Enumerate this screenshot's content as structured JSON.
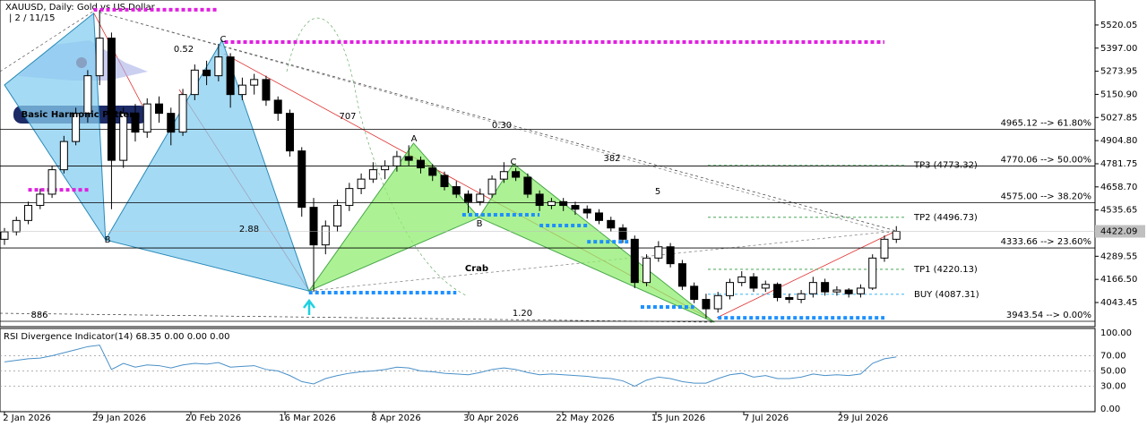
{
  "chart_data": {
    "type": "candlestick",
    "title": "XAUUSD, Daily:  Gold vs US Dollar",
    "subtitle": "| 2 / 11/15",
    "last_price": 4422.09,
    "ylim": [
      3915,
      5653
    ],
    "yticks": [
      5520.05,
      {
        "value": 5397,
        "label": "5397.00"
      },
      5273.95,
      {
        "value": 5150.9,
        "label": "5150.90"
      },
      5027.85,
      {
        "value": 4904.8,
        "label": "4904.80"
      },
      4781.75,
      {
        "value": 4658.7,
        "label": "4658.70"
      },
      4535.65,
      4289.55,
      {
        "value": 4166.5,
        "label": "4166.50"
      },
      4043.45
    ],
    "x_labels": [
      "2 Jan 2026",
      "29 Jan 2026",
      "20 Feb 2026",
      "16 Mar 2026",
      "8 Apr 2026",
      "30 Apr 2026",
      "22 May 2026",
      "15 Jun 2026",
      "7 Jul 2026",
      "29 Jul 2026"
    ],
    "candles": [
      [
        4380,
        4440,
        4350,
        4420
      ],
      [
        4420,
        4500,
        4400,
        4480
      ],
      [
        4480,
        4580,
        4460,
        4560
      ],
      [
        4560,
        4650,
        4540,
        4620
      ],
      [
        4620,
        4770,
        4600,
        4750
      ],
      [
        4750,
        4930,
        4730,
        4900
      ],
      [
        4900,
        5080,
        4880,
        5050
      ],
      [
        5050,
        5280,
        5000,
        5250
      ],
      [
        5250,
        5600,
        5200,
        5450
      ],
      [
        5450,
        5480,
        4540,
        4800
      ],
      [
        4800,
        5080,
        4760,
        5050
      ],
      [
        5050,
        5100,
        4900,
        4950
      ],
      [
        4950,
        5130,
        4920,
        5100
      ],
      [
        5100,
        5140,
        5000,
        5050
      ],
      [
        5050,
        5080,
        4880,
        4950
      ],
      [
        4950,
        5180,
        4930,
        5150
      ],
      [
        5150,
        5310,
        5120,
        5280
      ],
      [
        5280,
        5330,
        5200,
        5250
      ],
      [
        5250,
        5420,
        5220,
        5350
      ],
      [
        5350,
        5370,
        5080,
        5150
      ],
      [
        5150,
        5240,
        5120,
        5200
      ],
      [
        5200,
        5260,
        5150,
        5230
      ],
      [
        5230,
        5250,
        5090,
        5120
      ],
      [
        5120,
        5140,
        5010,
        5050
      ],
      [
        5050,
        5070,
        4820,
        4850
      ],
      [
        4850,
        4870,
        4500,
        4550
      ],
      [
        4550,
        4600,
        4100,
        4350
      ],
      [
        4350,
        4480,
        4300,
        4450
      ],
      [
        4450,
        4590,
        4420,
        4560
      ],
      [
        4560,
        4680,
        4530,
        4650
      ],
      [
        4650,
        4730,
        4620,
        4700
      ],
      [
        4700,
        4790,
        4680,
        4750
      ],
      [
        4750,
        4800,
        4700,
        4770
      ],
      [
        4770,
        4850,
        4740,
        4820
      ],
      [
        4820,
        4880,
        4770,
        4800
      ],
      [
        4800,
        4820,
        4730,
        4760
      ],
      [
        4760,
        4780,
        4690,
        4720
      ],
      [
        4720,
        4740,
        4640,
        4660
      ],
      [
        4660,
        4690,
        4600,
        4620
      ],
      [
        4620,
        4640,
        4520,
        4580
      ],
      [
        4580,
        4650,
        4560,
        4620
      ],
      [
        4620,
        4720,
        4600,
        4700
      ],
      [
        4700,
        4790,
        4680,
        4740
      ],
      [
        4740,
        4760,
        4690,
        4710
      ],
      [
        4710,
        4730,
        4600,
        4620
      ],
      [
        4620,
        4640,
        4530,
        4560
      ],
      [
        4560,
        4600,
        4540,
        4580
      ],
      [
        4580,
        4600,
        4530,
        4560
      ],
      [
        4560,
        4580,
        4510,
        4540
      ],
      [
        4540,
        4560,
        4490,
        4520
      ],
      [
        4520,
        4540,
        4460,
        4480
      ],
      [
        4480,
        4500,
        4420,
        4440
      ],
      [
        4440,
        4460,
        4360,
        4380
      ],
      [
        4380,
        4400,
        4120,
        4150
      ],
      [
        4150,
        4300,
        4130,
        4280
      ],
      [
        4280,
        4370,
        4260,
        4340
      ],
      [
        4340,
        4360,
        4230,
        4250
      ],
      [
        4250,
        4270,
        4110,
        4130
      ],
      [
        4130,
        4150,
        4040,
        4060
      ],
      [
        4060,
        4090,
        3960,
        4010
      ],
      [
        4010,
        4100,
        3990,
        4080
      ],
      [
        4080,
        4170,
        4060,
        4150
      ],
      [
        4150,
        4210,
        4130,
        4180
      ],
      [
        4180,
        4200,
        4100,
        4120
      ],
      [
        4120,
        4160,
        4100,
        4140
      ],
      [
        4140,
        4150,
        4050,
        4070
      ],
      [
        4070,
        4090,
        4040,
        4060
      ],
      [
        4060,
        4110,
        4040,
        4090
      ],
      [
        4090,
        4180,
        4070,
        4150
      ],
      [
        4150,
        4170,
        4080,
        4100
      ],
      [
        4100,
        4130,
        4080,
        4110
      ],
      [
        4110,
        4120,
        4070,
        4090
      ],
      [
        4090,
        4140,
        4070,
        4120
      ],
      [
        4120,
        4300,
        4110,
        4280
      ],
      [
        4280,
        4400,
        4260,
        4380
      ],
      [
        4380,
        4450,
        4360,
        4422.09
      ]
    ],
    "patterns": [
      {
        "color": "#87cef0",
        "points": [
          [
            0,
            5200.9
          ],
          [
            7.5,
            5582
          ],
          [
            8.5,
            4376.7
          ]
        ]
      },
      {
        "color": "#87cef0",
        "points": [
          [
            8.5,
            4376.7
          ],
          [
            18.3,
            5439
          ],
          [
            25.6,
            4105
          ]
        ]
      },
      {
        "color": "#90ee70",
        "points": [
          [
            25.6,
            4105
          ],
          [
            34.4,
            4891
          ],
          [
            39.9,
            4495.7
          ]
        ]
      },
      {
        "color": "#90ee70",
        "points": [
          [
            39.9,
            4495.7
          ],
          [
            42.8,
            4781.6
          ],
          [
            59.7,
            3938
          ]
        ]
      }
    ],
    "fib_levels": [
      {
        "value": 4965.12,
        "label": "4965.12 --> 61.80%"
      },
      {
        "value": 4770.06,
        "label": "4770.06 --> 50.00%"
      },
      {
        "value": 4575.0,
        "label": "4575.00 --> 38.20%"
      },
      {
        "value": 4333.66,
        "label": "4333.66 --> 23.60%"
      },
      {
        "value": 3943.54,
        "label": "3943.54 --> 0.00%"
      }
    ],
    "targets": [
      {
        "value": 4773.32,
        "label": "TP3 (4773.32)",
        "color": "#2e9a3e"
      },
      {
        "value": 4496.73,
        "label": "TP2 (4496.73)",
        "color": "#2e9a3e"
      },
      {
        "value": 4220.13,
        "label": "TP1 (4220.13)",
        "color": "#2e9a3e"
      },
      {
        "value": 4087.31,
        "label": "BUY (4087.31)",
        "color": "#1eaaf0"
      }
    ],
    "dotted_levels": [
      {
        "value": 5601,
        "from": 7.5,
        "to": 18,
        "color": "#e020e0"
      },
      {
        "value": 5429,
        "from": 18.5,
        "to": 74,
        "color": "#e020e0"
      },
      {
        "value": 4643,
        "from": 2,
        "to": 7.2,
        "color": "#e020e0"
      },
      {
        "value": 4096,
        "from": 25.6,
        "to": 38,
        "color": "#1e90ff"
      },
      {
        "value": 4510,
        "from": 38.5,
        "to": 45,
        "color": "#1e90ff"
      },
      {
        "value": 4453,
        "from": 45,
        "to": 49,
        "color": "#1e90ff"
      },
      {
        "value": 4367,
        "from": 49,
        "to": 53,
        "color": "#1e90ff"
      },
      {
        "value": 4020,
        "from": 53.5,
        "to": 58,
        "color": "#1e90ff"
      },
      {
        "value": 3962,
        "from": 60,
        "to": 74,
        "color": "#1e90ff"
      }
    ],
    "annotations": [
      "0.52",
      "C",
      "B",
      "707",
      "0.30",
      "382",
      "5",
      "A",
      "C",
      "B",
      "Crab",
      "2.88",
      "886",
      "1.20",
      "Basic Harmonic Pattern"
    ],
    "rsi": {
      "title": "RSI Divergence Indicator(14) 68.35 0.00 0.00 0.00",
      "color": "#4a90c8",
      "ylim": [
        -3.5,
        105.9
      ],
      "yticks": [
        {
          "value": 100,
          "label": "100.00"
        },
        {
          "value": 70,
          "label": "70.00"
        },
        {
          "value": 50,
          "label": "50.00"
        },
        {
          "value": 30,
          "label": "30.00"
        },
        {
          "value": 0,
          "label": "0.00"
        }
      ],
      "values": [
        62,
        64,
        66,
        67,
        70,
        74,
        78,
        82,
        84,
        52,
        60,
        55,
        58,
        57,
        54,
        58,
        60,
        59,
        61,
        55,
        56,
        57,
        52,
        50,
        44,
        36,
        33,
        40,
        44,
        47,
        49,
        50,
        52,
        55,
        54,
        50,
        49,
        47,
        46,
        45,
        48,
        52,
        54,
        52,
        48,
        45,
        46,
        45,
        44,
        43,
        41,
        40,
        37,
        30,
        38,
        42,
        40,
        36,
        34,
        34,
        40,
        45,
        47,
        42,
        44,
        40,
        40,
        42,
        46,
        44,
        45,
        44,
        46,
        60,
        66,
        68.35
      ]
    }
  }
}
